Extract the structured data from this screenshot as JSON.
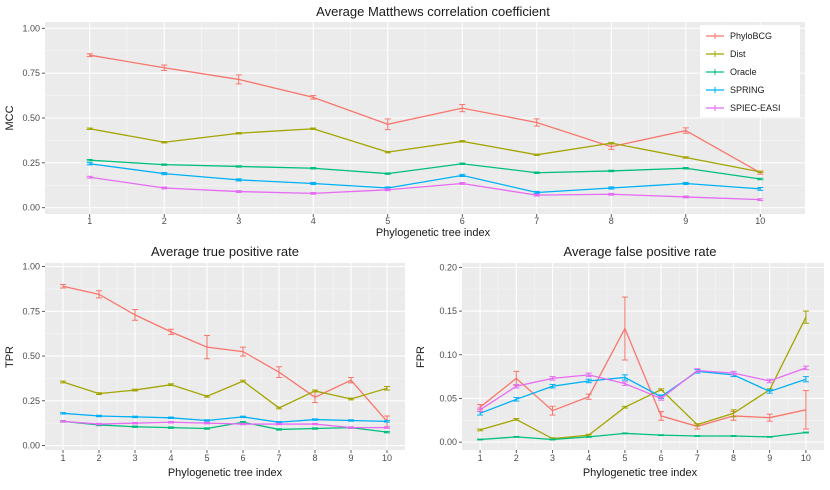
{
  "series_colors": {
    "PhyloBCG": "#f8766d",
    "Dist": "#a3a500",
    "Oracle": "#00bf7d",
    "SPRING": "#00b0f6",
    "SPIEC-EASI": "#e76bf3"
  },
  "legend_order": [
    "PhyloBCG",
    "Dist",
    "Oracle",
    "SPRING",
    "SPIEC-EASI"
  ],
  "chart_data": [
    {
      "id": "mcc",
      "type": "line",
      "title": "Average Matthews correlation coefficient",
      "xlabel": "Phylogenetic tree index",
      "ylabel": "MCC",
      "x": [
        1,
        2,
        3,
        4,
        5,
        6,
        7,
        8,
        9,
        10
      ],
      "xticks": [
        "1",
        "2",
        "3",
        "4",
        "5",
        "6",
        "7",
        "8",
        "9",
        "10"
      ],
      "ylim": [
        -0.035,
        1.035
      ],
      "yticks": [
        0,
        0.25,
        0.5,
        0.75,
        1
      ],
      "ytick_labels": [
        "0.00",
        "0.25",
        "0.50",
        "0.75",
        "1.00"
      ],
      "grid": true,
      "legend": "top-right",
      "series": [
        {
          "name": "PhyloBCG",
          "values": [
            0.85,
            0.78,
            0.715,
            0.615,
            0.465,
            0.555,
            0.475,
            0.34,
            0.43,
            0.195
          ],
          "err": [
            0.008,
            0.015,
            0.025,
            0.01,
            0.03,
            0.02,
            0.02,
            0.015,
            0.015,
            0.008
          ]
        },
        {
          "name": "Dist",
          "values": [
            0.44,
            0.365,
            0.415,
            0.44,
            0.31,
            0.37,
            0.295,
            0.36,
            0.28,
            0.2
          ],
          "err": [
            0.004,
            0.004,
            0.004,
            0.004,
            0.004,
            0.004,
            0.004,
            0.004,
            0.004,
            0.004
          ]
        },
        {
          "name": "Oracle",
          "values": [
            0.265,
            0.24,
            0.23,
            0.22,
            0.19,
            0.245,
            0.195,
            0.205,
            0.22,
            0.16
          ],
          "err": [
            0.004,
            0.004,
            0.004,
            0.004,
            0.004,
            0.004,
            0.004,
            0.004,
            0.004,
            0.004
          ]
        },
        {
          "name": "SPRING",
          "values": [
            0.245,
            0.19,
            0.155,
            0.135,
            0.11,
            0.18,
            0.085,
            0.11,
            0.135,
            0.105
          ],
          "err": [
            0.006,
            0.006,
            0.006,
            0.006,
            0.006,
            0.006,
            0.006,
            0.006,
            0.006,
            0.008
          ]
        },
        {
          "name": "SPIEC-EASI",
          "values": [
            0.17,
            0.11,
            0.09,
            0.08,
            0.1,
            0.135,
            0.07,
            0.075,
            0.06,
            0.045
          ],
          "err": [
            0.005,
            0.005,
            0.005,
            0.005,
            0.005,
            0.005,
            0.005,
            0.005,
            0.005,
            0.005
          ]
        }
      ]
    },
    {
      "id": "tpr",
      "type": "line",
      "title": "Average true positive rate",
      "xlabel": "Phylogenetic tree index",
      "ylabel": "TPR",
      "x": [
        1,
        2,
        3,
        4,
        5,
        6,
        7,
        8,
        9,
        10
      ],
      "xticks": [
        "1",
        "2",
        "3",
        "4",
        "5",
        "6",
        "7",
        "8",
        "9",
        "10"
      ],
      "ylim": [
        -0.025,
        1.02
      ],
      "yticks": [
        0,
        0.25,
        0.5,
        0.75,
        1
      ],
      "ytick_labels": [
        "0.00",
        "0.25",
        "0.50",
        "0.75",
        "1.00"
      ],
      "grid": true,
      "legend": "none",
      "series": [
        {
          "name": "PhyloBCG",
          "values": [
            0.89,
            0.845,
            0.73,
            0.635,
            0.55,
            0.525,
            0.41,
            0.27,
            0.365,
            0.135
          ],
          "err": [
            0.01,
            0.02,
            0.03,
            0.015,
            0.065,
            0.025,
            0.03,
            0.03,
            0.015,
            0.03
          ]
        },
        {
          "name": "Dist",
          "values": [
            0.355,
            0.29,
            0.31,
            0.34,
            0.275,
            0.36,
            0.21,
            0.305,
            0.26,
            0.32
          ],
          "err": [
            0.005,
            0.005,
            0.005,
            0.005,
            0.005,
            0.005,
            0.005,
            0.005,
            0.005,
            0.01
          ]
        },
        {
          "name": "Oracle",
          "values": [
            0.135,
            0.115,
            0.105,
            0.1,
            0.095,
            0.13,
            0.09,
            0.095,
            0.1,
            0.075
          ],
          "err": [
            0.004,
            0.004,
            0.004,
            0.004,
            0.004,
            0.004,
            0.004,
            0.004,
            0.004,
            0.004
          ]
        },
        {
          "name": "SPRING",
          "values": [
            0.18,
            0.165,
            0.16,
            0.155,
            0.14,
            0.16,
            0.13,
            0.145,
            0.14,
            0.135
          ],
          "err": [
            0.004,
            0.004,
            0.004,
            0.004,
            0.004,
            0.004,
            0.004,
            0.004,
            0.004,
            0.004
          ]
        },
        {
          "name": "SPIEC-EASI",
          "values": [
            0.135,
            0.12,
            0.125,
            0.13,
            0.125,
            0.12,
            0.12,
            0.12,
            0.1,
            0.1
          ],
          "err": [
            0.004,
            0.004,
            0.004,
            0.004,
            0.004,
            0.004,
            0.004,
            0.004,
            0.004,
            0.004
          ]
        }
      ]
    },
    {
      "id": "fpr",
      "type": "line",
      "title": "Average false positive rate",
      "xlabel": "Phylogenetic tree index",
      "ylabel": "FPR",
      "x": [
        1,
        2,
        3,
        4,
        5,
        6,
        7,
        8,
        9,
        10
      ],
      "xticks": [
        "1",
        "2",
        "3",
        "4",
        "5",
        "6",
        "7",
        "8",
        "9",
        "10"
      ],
      "ylim": [
        -0.009,
        0.205
      ],
      "yticks": [
        0,
        0.05,
        0.1,
        0.15,
        0.2
      ],
      "ytick_labels": [
        "0.00",
        "0.05",
        "0.10",
        "0.15",
        "0.20"
      ],
      "grid": true,
      "legend": "none",
      "series": [
        {
          "name": "PhyloBCG",
          "values": [
            0.04,
            0.073,
            0.036,
            0.052,
            0.13,
            0.03,
            0.018,
            0.03,
            0.028,
            0.037
          ],
          "err": [
            0.003,
            0.008,
            0.005,
            0.003,
            0.036,
            0.005,
            0.003,
            0.005,
            0.004,
            0.022
          ]
        },
        {
          "name": "Dist",
          "values": [
            0.014,
            0.026,
            0.004,
            0.008,
            0.04,
            0.06,
            0.02,
            0.033,
            0.06,
            0.143
          ],
          "err": [
            0.001,
            0.001,
            0.001,
            0.001,
            0.001,
            0.001,
            0.001,
            0.004,
            0.001,
            0.007
          ]
        },
        {
          "name": "Oracle",
          "values": [
            0.003,
            0.006,
            0.003,
            0.006,
            0.01,
            0.008,
            0.007,
            0.007,
            0.006,
            0.011
          ],
          "err": [
            0.0005,
            0.0005,
            0.0005,
            0.0005,
            0.0005,
            0.0005,
            0.0005,
            0.0005,
            0.0005,
            0.0005
          ]
        },
        {
          "name": "SPRING",
          "values": [
            0.033,
            0.049,
            0.064,
            0.07,
            0.074,
            0.052,
            0.081,
            0.077,
            0.058,
            0.072
          ],
          "err": [
            0.002,
            0.002,
            0.002,
            0.002,
            0.003,
            0.002,
            0.002,
            0.002,
            0.002,
            0.003
          ]
        },
        {
          "name": "SPIEC-EASI",
          "values": [
            0.037,
            0.064,
            0.073,
            0.077,
            0.067,
            0.05,
            0.082,
            0.079,
            0.07,
            0.085
          ],
          "err": [
            0.002,
            0.002,
            0.002,
            0.002,
            0.002,
            0.002,
            0.002,
            0.002,
            0.002,
            0.002
          ]
        }
      ]
    }
  ]
}
